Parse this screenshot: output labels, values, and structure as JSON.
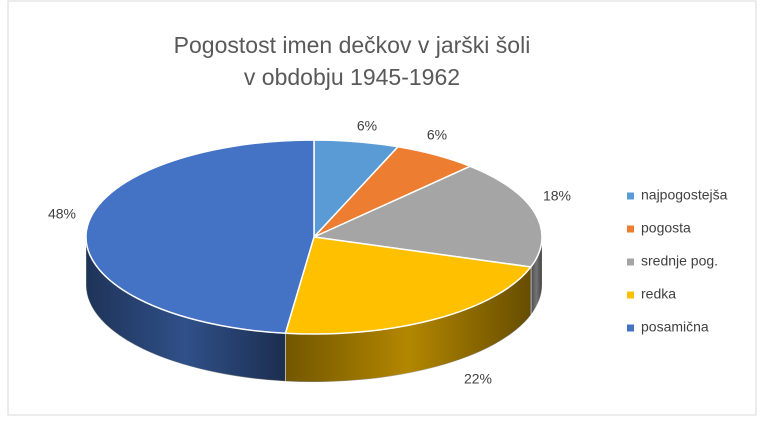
{
  "chart_data": {
    "type": "pie3d",
    "title": [
      "Pogostost imen dečkov v jarški šoli",
      "v obdobju 1945-1962"
    ],
    "categories": [
      "najpogostejša",
      "pogosta",
      "srednje pog.",
      "redka",
      "posamična"
    ],
    "values": [
      6,
      6,
      18,
      22,
      48
    ],
    "value_labels": [
      "6%",
      "6%",
      "18%",
      "22%",
      "48%"
    ],
    "colors": [
      "#5b9bd5",
      "#ed7d31",
      "#a5a5a5",
      "#ffc000",
      "#4472c4"
    ],
    "legend": "right"
  }
}
